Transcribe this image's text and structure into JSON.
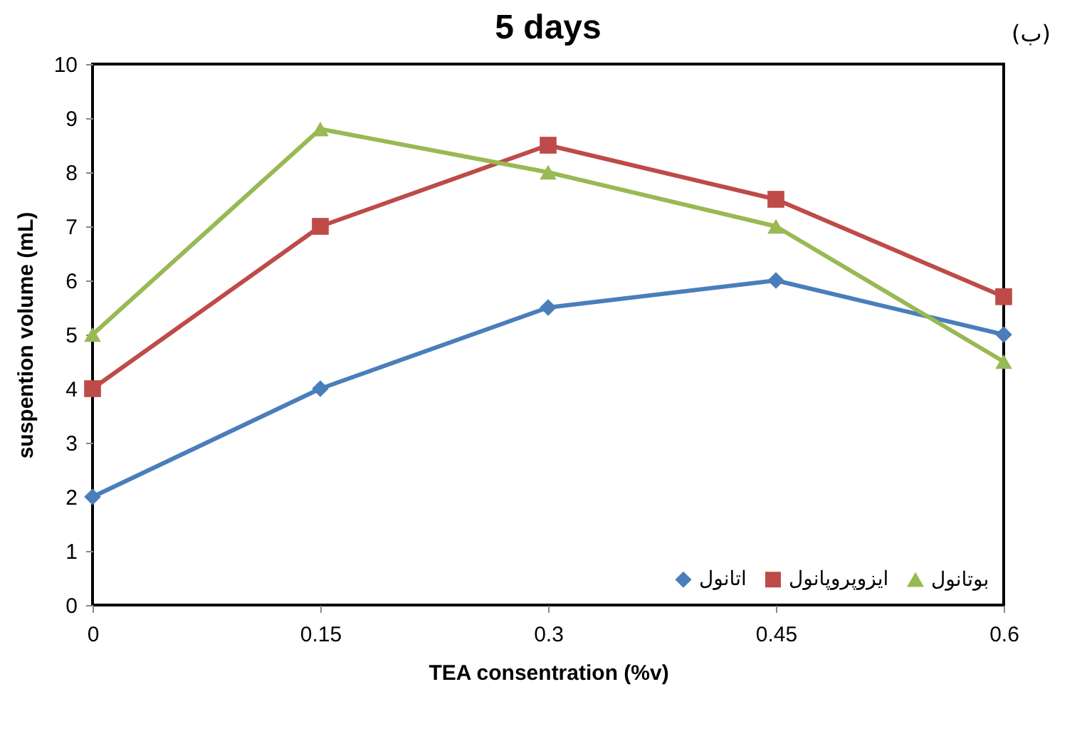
{
  "chart_data": {
    "type": "line",
    "title": "5 days",
    "xlabel": "TEA consentration (%v)",
    "ylabel": "suspention volume (mL)",
    "annotations": [
      "(ب)"
    ],
    "x": [
      0,
      0.15,
      0.3,
      0.45,
      0.6
    ],
    "xlim": [
      0,
      0.6
    ],
    "xticks": [
      0,
      0.15,
      0.3,
      0.45,
      0.6
    ],
    "ylim": [
      0,
      10
    ],
    "yticks": [
      0,
      1,
      2,
      3,
      4,
      5,
      6,
      7,
      8,
      9,
      10
    ],
    "grid": false,
    "legend": "bottom right",
    "series": [
      {
        "name": "اتانول",
        "color": "#4a7ebb",
        "marker": "diamond",
        "values": [
          2,
          4,
          5.5,
          6,
          5
        ]
      },
      {
        "name": "ایزوپروپانول",
        "color": "#be4b48",
        "marker": "square",
        "values": [
          4,
          7,
          8.5,
          7.5,
          5.7
        ]
      },
      {
        "name": "بوتانول",
        "color": "#98b954",
        "marker": "triangle",
        "values": [
          5,
          8.8,
          8,
          7,
          4.5
        ]
      }
    ]
  }
}
